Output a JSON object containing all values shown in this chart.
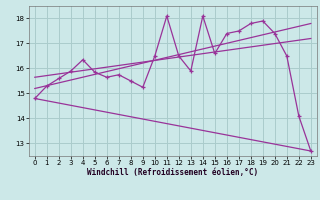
{
  "background_color": "#cce8e8",
  "grid_color": "#aacccc",
  "line_color": "#993399",
  "xlabel": "Windchill (Refroidissement éolien,°C)",
  "xlim": [
    -0.5,
    23.5
  ],
  "ylim": [
    12.5,
    18.5
  ],
  "yticks": [
    13,
    14,
    15,
    16,
    17,
    18
  ],
  "xticks": [
    0,
    1,
    2,
    3,
    4,
    5,
    6,
    7,
    8,
    9,
    10,
    11,
    12,
    13,
    14,
    15,
    16,
    17,
    18,
    19,
    20,
    21,
    22,
    23
  ],
  "series1_x": [
    0,
    1,
    2,
    3,
    4,
    5,
    6,
    7,
    8,
    9,
    10,
    11,
    12,
    13,
    14,
    15,
    16,
    17,
    18,
    19,
    20,
    21,
    22,
    23
  ],
  "series1_y": [
    14.8,
    15.3,
    15.6,
    15.9,
    16.35,
    15.85,
    15.65,
    15.75,
    15.5,
    15.25,
    16.5,
    18.1,
    16.5,
    15.9,
    18.1,
    16.6,
    17.4,
    17.5,
    17.8,
    17.9,
    17.4,
    16.5,
    14.1,
    12.7
  ],
  "trend1_x": [
    0,
    23
  ],
  "trend1_y": [
    14.8,
    12.7
  ],
  "trend2_x": [
    0,
    23
  ],
  "trend2_y": [
    15.2,
    17.8
  ],
  "trend3_x": [
    0,
    23
  ],
  "trend3_y": [
    15.65,
    17.2
  ]
}
